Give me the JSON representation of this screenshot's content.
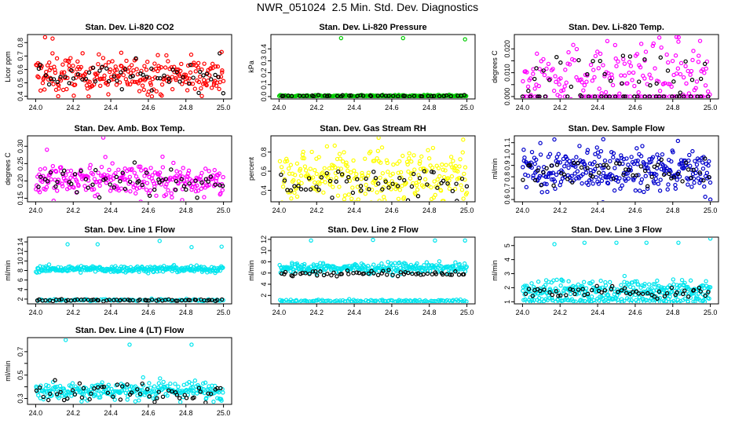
{
  "page_title": "NWR_051024  2.5 Min. Std. Dev. Diagnostics",
  "colors": {
    "axis": "#000000",
    "overlay": "#000000"
  },
  "chart_data": [
    {
      "type": "scatter",
      "title": "Stan. Dev. Li-820 CO2",
      "ylabel": "Licor ppm",
      "color": "#ff0000",
      "xlim": [
        24.0,
        25.0
      ],
      "ylim": [
        0.38,
        0.86
      ],
      "xticks": [
        "24.0",
        "24.2",
        "24.4",
        "24.6",
        "24.8",
        "25.0"
      ],
      "yticks": [
        "0.4",
        "0.5",
        "0.6",
        "0.7",
        "0.8"
      ],
      "yticks_v": [
        0.4,
        0.5,
        0.6,
        0.7,
        0.8
      ],
      "bands": [
        {
          "name": "main",
          "color": "#ff0000",
          "center": 0.56,
          "spread": 0.07,
          "n": 260
        },
        {
          "name": "overlay",
          "color": "#000000",
          "center": 0.55,
          "spread": 0.05,
          "n": 55
        }
      ],
      "outliers": [
        {
          "x": 24.05,
          "y": 0.84,
          "color": "#ff0000"
        },
        {
          "x": 24.09,
          "y": 0.83,
          "color": "#ff0000"
        },
        {
          "x": 24.12,
          "y": 0.4,
          "color": "#ff0000"
        },
        {
          "x": 24.98,
          "y": 0.72,
          "color": "#000000"
        },
        {
          "x": 24.99,
          "y": 0.73,
          "color": "#ff0000"
        }
      ]
    },
    {
      "type": "scatter",
      "title": "Stan. Dev. Li-820 Pressure",
      "ylabel": "kPa",
      "color": "#00cc00",
      "xlim": [
        24.0,
        25.0
      ],
      "ylim": [
        -0.02,
        0.52
      ],
      "xticks": [
        "24.0",
        "24.2",
        "24.4",
        "24.6",
        "24.8",
        "25.0"
      ],
      "yticks": [
        "0.0",
        "0.1",
        "0.2",
        "0.3",
        "0.4"
      ],
      "yticks_v": [
        0.0,
        0.1,
        0.2,
        0.3,
        0.4
      ],
      "bands": [
        {
          "name": "main",
          "color": "#00cc00",
          "center": 0.005,
          "spread": 0.004,
          "n": 220
        },
        {
          "name": "overlay",
          "color": "#000000",
          "center": 0.005,
          "spread": 0.003,
          "n": 45
        }
      ],
      "outliers": [
        {
          "x": 24.33,
          "y": 0.49,
          "color": "#00cc00"
        },
        {
          "x": 24.66,
          "y": 0.49,
          "color": "#00cc00"
        },
        {
          "x": 24.99,
          "y": 0.48,
          "color": "#00cc00"
        }
      ]
    },
    {
      "type": "scatter",
      "title": "Stan. Dev. Li-820 Temp.",
      "ylabel": "degrees C",
      "color": "#ff00ff",
      "xlim": [
        24.0,
        25.0
      ],
      "ylim": [
        -0.001,
        0.026
      ],
      "xticks": [
        "24.0",
        "24.2",
        "24.4",
        "24.6",
        "24.8",
        "25.0"
      ],
      "yticks": [
        "0.000",
        "0.010",
        "0.020"
      ],
      "yticks_v": [
        0.0,
        0.005,
        0.01,
        0.015,
        0.02
      ],
      "yticks_labels": [
        "0.000",
        "",
        "0.010",
        "",
        "0.020"
      ],
      "bands": [
        {
          "name": "main",
          "color": "#ff00ff",
          "center": 0.01,
          "spread": 0.006,
          "n": 160
        },
        {
          "name": "overlay",
          "color": "#000000",
          "center": 0.01,
          "spread": 0.005,
          "n": 30
        },
        {
          "name": "floor",
          "color": "#ff00ff",
          "center": 0.0,
          "spread": 0.0,
          "n": 70
        },
        {
          "name": "floor-overlay",
          "color": "#000000",
          "center": 0.0,
          "spread": 0.0,
          "n": 35
        }
      ],
      "outliers": [
        {
          "x": 24.82,
          "y": 0.025,
          "color": "#ff00ff"
        },
        {
          "x": 24.83,
          "y": 0.023,
          "color": "#ff00ff"
        }
      ]
    },
    {
      "type": "scatter",
      "title": "Stan. Dev. Amb. Box Temp.",
      "ylabel": "degrees C",
      "color": "#ff00ff",
      "xlim": [
        24.0,
        25.0
      ],
      "ylim": [
        0.14,
        0.33
      ],
      "xticks": [
        "24.0",
        "24.2",
        "24.4",
        "24.6",
        "24.8",
        "25.0"
      ],
      "yticks": [
        "0.15",
        "0.20",
        "0.25",
        "0.30"
      ],
      "yticks_v": [
        0.15,
        0.2,
        0.25,
        0.3
      ],
      "bands": [
        {
          "name": "main",
          "color": "#ff00ff",
          "center": 0.205,
          "spread": 0.025,
          "n": 260
        },
        {
          "name": "overlay",
          "color": "#000000",
          "center": 0.195,
          "spread": 0.02,
          "n": 55
        }
      ],
      "outliers": [
        {
          "x": 24.36,
          "y": 0.325,
          "color": "#ff00ff"
        },
        {
          "x": 24.06,
          "y": 0.29,
          "color": "#ff00ff"
        },
        {
          "x": 24.78,
          "y": 0.145,
          "color": "#ff00ff"
        }
      ]
    },
    {
      "type": "scatter",
      "title": "Stan. Dev. Gas Stream RH",
      "ylabel": "percent",
      "color": "#ffff00",
      "xlim": [
        24.0,
        25.0
      ],
      "ylim": [
        0.28,
        0.97
      ],
      "xticks": [
        "24.0",
        "24.2",
        "24.4",
        "24.6",
        "24.8",
        "25.0"
      ],
      "yticks": [
        "0.4",
        "0.6",
        "0.8"
      ],
      "yticks_v": [
        0.4,
        0.6,
        0.8
      ],
      "bands": [
        {
          "name": "main",
          "color": "#ffff00",
          "center": 0.55,
          "spread": 0.15,
          "n": 280
        },
        {
          "name": "overlay",
          "color": "#000000",
          "center": 0.45,
          "spread": 0.09,
          "n": 55
        }
      ],
      "outliers": [
        {
          "x": 24.53,
          "y": 0.95,
          "color": "#ffff00"
        },
        {
          "x": 24.98,
          "y": 0.93,
          "color": "#ffff00"
        }
      ]
    },
    {
      "type": "scatter",
      "title": "Stan. Dev. Sample Flow",
      "ylabel": "ml/min",
      "color": "#0000cc",
      "xlim": [
        24.0,
        25.0
      ],
      "ylim": [
        0.58,
        1.16
      ],
      "xticks": [
        "24.0",
        "24.2",
        "24.4",
        "24.6",
        "24.8",
        "25.0"
      ],
      "yticks": [
        "0.6",
        "0.7",
        "0.8",
        "0.9",
        "1.0",
        "1.1"
      ],
      "yticks_v": [
        0.6,
        0.7,
        0.8,
        0.9,
        1.0,
        1.1
      ],
      "bands": [
        {
          "name": "main",
          "color": "#0000cc",
          "center": 0.86,
          "spread": 0.09,
          "n": 300
        },
        {
          "name": "overlay",
          "color": "#000000",
          "center": 0.84,
          "spread": 0.06,
          "n": 55
        }
      ],
      "outliers": [
        {
          "x": 24.43,
          "y": 1.13,
          "color": "#0000cc"
        },
        {
          "x": 25.0,
          "y": 0.6,
          "color": "#0000cc"
        }
      ]
    },
    {
      "type": "scatter",
      "title": "Stan. Dev. Line 1 Flow",
      "ylabel": "ml/min",
      "color": "#00e5ee",
      "xlim": [
        24.0,
        25.0
      ],
      "ylim": [
        1.0,
        15.0
      ],
      "xticks": [
        "24.0",
        "24.2",
        "24.4",
        "24.6",
        "24.8",
        "25.0"
      ],
      "yticks": [
        "2",
        "4",
        "6",
        "8",
        "10",
        "12",
        "14"
      ],
      "yticks_v": [
        2,
        4,
        6,
        8,
        10,
        12,
        14
      ],
      "bands": [
        {
          "name": "main",
          "color": "#00e5ee",
          "center": 8.3,
          "spread": 0.35,
          "n": 260
        },
        {
          "name": "low",
          "color": "#00e5ee",
          "center": 1.8,
          "spread": 0.12,
          "n": 90
        },
        {
          "name": "overlay",
          "color": "#000000",
          "center": 1.8,
          "spread": 0.1,
          "n": 60
        }
      ],
      "outliers": [
        {
          "x": 24.17,
          "y": 13.5,
          "color": "#00e5ee"
        },
        {
          "x": 24.33,
          "y": 13.5,
          "color": "#00e5ee"
        },
        {
          "x": 24.66,
          "y": 14.2,
          "color": "#00e5ee"
        },
        {
          "x": 24.83,
          "y": 12.9,
          "color": "#00e5ee"
        },
        {
          "x": 24.99,
          "y": 13.0,
          "color": "#00e5ee"
        }
      ]
    },
    {
      "type": "scatter",
      "title": "Stan. Dev. Line 2 Flow",
      "ylabel": "ml/min",
      "color": "#00e5ee",
      "xlim": [
        24.0,
        25.0
      ],
      "ylim": [
        0.5,
        12.4
      ],
      "xticks": [
        "24.0",
        "24.2",
        "24.4",
        "24.6",
        "24.8",
        "25.0"
      ],
      "yticks": [
        "2",
        "4",
        "6",
        "8",
        "10",
        "12"
      ],
      "yticks_v": [
        2,
        4,
        6,
        8,
        10,
        12
      ],
      "bands": [
        {
          "name": "main",
          "color": "#00e5ee",
          "center": 6.9,
          "spread": 0.45,
          "n": 260
        },
        {
          "name": "low",
          "color": "#00e5ee",
          "center": 1.0,
          "spread": 0.12,
          "n": 120
        },
        {
          "name": "overlay",
          "color": "#000000",
          "center": 5.9,
          "spread": 0.25,
          "n": 60
        }
      ],
      "outliers": [
        {
          "x": 24.17,
          "y": 11.8,
          "color": "#00e5ee"
        },
        {
          "x": 24.5,
          "y": 11.9,
          "color": "#00e5ee"
        },
        {
          "x": 24.83,
          "y": 11.8,
          "color": "#00e5ee"
        },
        {
          "x": 24.99,
          "y": 11.8,
          "color": "#00e5ee"
        }
      ]
    },
    {
      "type": "scatter",
      "title": "Stan. Dev. Line 3 Flow",
      "ylabel": "ml/min",
      "color": "#00e5ee",
      "xlim": [
        24.0,
        25.0
      ],
      "ylim": [
        0.85,
        5.6
      ],
      "xticks": [
        "24.0",
        "24.2",
        "24.4",
        "24.6",
        "24.8",
        "25.0"
      ],
      "yticks": [
        "1",
        "2",
        "3",
        "4",
        "5"
      ],
      "yticks_v": [
        1,
        2,
        3,
        4,
        5
      ],
      "bands": [
        {
          "name": "main",
          "color": "#00e5ee",
          "center": 1.9,
          "spread": 0.35,
          "n": 260
        },
        {
          "name": "low",
          "color": "#00e5ee",
          "center": 1.1,
          "spread": 0.1,
          "n": 100
        },
        {
          "name": "overlay",
          "color": "#000000",
          "center": 1.7,
          "spread": 0.2,
          "n": 55
        }
      ],
      "outliers": [
        {
          "x": 24.17,
          "y": 5.1,
          "color": "#00e5ee"
        },
        {
          "x": 24.33,
          "y": 5.2,
          "color": "#00e5ee"
        },
        {
          "x": 24.5,
          "y": 5.2,
          "color": "#00e5ee"
        },
        {
          "x": 24.66,
          "y": 5.2,
          "color": "#00e5ee"
        },
        {
          "x": 24.83,
          "y": 5.2,
          "color": "#00e5ee"
        },
        {
          "x": 25.0,
          "y": 5.5,
          "color": "#00e5ee"
        }
      ]
    },
    {
      "type": "scatter",
      "title": "Stan. Dev. Line 4 (LT) Flow",
      "ylabel": "ml/min",
      "color": "#00e5ee",
      "xlim": [
        24.0,
        25.0
      ],
      "ylim": [
        0.25,
        0.82
      ],
      "xticks": [
        "24.0",
        "24.2",
        "24.4",
        "24.6",
        "24.8",
        "25.0"
      ],
      "yticks": [
        "0.3",
        "0.5",
        "0.7"
      ],
      "yticks_v": [
        0.3,
        0.4,
        0.5,
        0.6,
        0.7
      ],
      "yticks_labels": [
        "0.3",
        "",
        "0.5",
        "",
        "0.7"
      ],
      "bands": [
        {
          "name": "main",
          "color": "#00e5ee",
          "center": 0.37,
          "spread": 0.04,
          "n": 260
        },
        {
          "name": "overlay",
          "color": "#000000",
          "center": 0.36,
          "spread": 0.04,
          "n": 55
        }
      ],
      "outliers": [
        {
          "x": 24.16,
          "y": 0.8,
          "color": "#00e5ee"
        },
        {
          "x": 24.5,
          "y": 0.76,
          "color": "#00e5ee"
        },
        {
          "x": 24.83,
          "y": 0.76,
          "color": "#00e5ee"
        }
      ]
    }
  ]
}
